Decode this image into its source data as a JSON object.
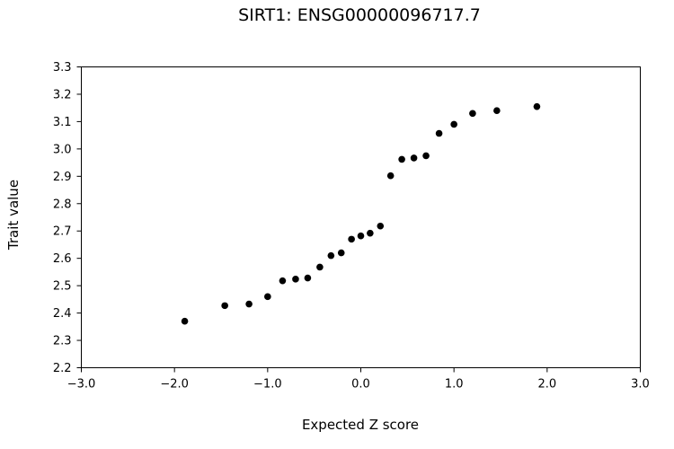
{
  "chart_data": {
    "type": "scatter",
    "title": "SIRT1: ENSG00000096717.7",
    "xlabel": "Expected Z score",
    "ylabel": "Trait value",
    "xlim": [
      -3.0,
      3.0
    ],
    "ylim": [
      2.2,
      3.3
    ],
    "xticks": [
      "−3.0",
      "−2.0",
      "−1.0",
      "0.0",
      "1.0",
      "2.0",
      "3.0"
    ],
    "yticks": [
      "2.2",
      "2.3",
      "2.4",
      "2.5",
      "2.6",
      "2.7",
      "2.8",
      "2.9",
      "3.0",
      "3.1",
      "3.2",
      "3.3"
    ],
    "grid": false,
    "points": [
      {
        "x": -1.89,
        "y": 2.37
      },
      {
        "x": -1.46,
        "y": 2.427
      },
      {
        "x": -1.2,
        "y": 2.433
      },
      {
        "x": -1.0,
        "y": 2.46
      },
      {
        "x": -0.84,
        "y": 2.518
      },
      {
        "x": -0.7,
        "y": 2.524
      },
      {
        "x": -0.57,
        "y": 2.528
      },
      {
        "x": -0.44,
        "y": 2.568
      },
      {
        "x": -0.32,
        "y": 2.61
      },
      {
        "x": -0.21,
        "y": 2.62
      },
      {
        "x": -0.1,
        "y": 2.67
      },
      {
        "x": 0.0,
        "y": 2.682
      },
      {
        "x": 0.1,
        "y": 2.692
      },
      {
        "x": 0.21,
        "y": 2.718
      },
      {
        "x": 0.32,
        "y": 2.902
      },
      {
        "x": 0.44,
        "y": 2.962
      },
      {
        "x": 0.57,
        "y": 2.967
      },
      {
        "x": 0.7,
        "y": 2.975
      },
      {
        "x": 0.84,
        "y": 3.057
      },
      {
        "x": 1.0,
        "y": 3.09
      },
      {
        "x": 1.2,
        "y": 3.13
      },
      {
        "x": 1.46,
        "y": 3.14
      },
      {
        "x": 1.89,
        "y": 3.155
      }
    ],
    "marker_color": "#000000"
  }
}
